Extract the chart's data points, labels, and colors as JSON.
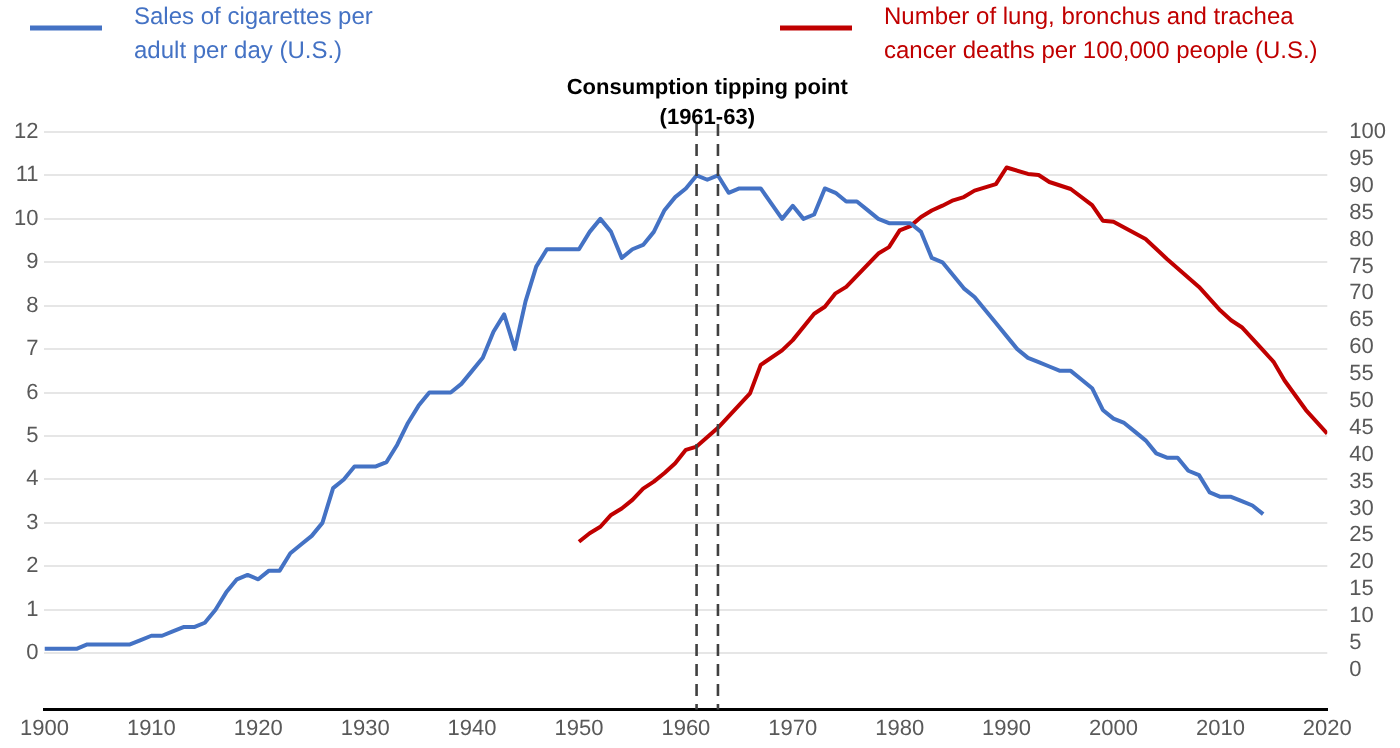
{
  "chart_data": {
    "type": "line",
    "xlim": [
      1900,
      2020
    ],
    "xticks": [
      1900,
      1910,
      1920,
      1930,
      1940,
      1950,
      1960,
      1970,
      1980,
      1990,
      2000,
      2010,
      2020
    ],
    "ylim": [
      -1.3,
      12
    ],
    "yticks": [
      0,
      1,
      2,
      3,
      4,
      5,
      6,
      7,
      8,
      9,
      10,
      11,
      12
    ],
    "y2lim": [
      -7.4,
      100
    ],
    "y2ticks": [
      0,
      5,
      10,
      15,
      20,
      25,
      30,
      35,
      40,
      45,
      50,
      55,
      60,
      65,
      70,
      75,
      80,
      85,
      90,
      95,
      100
    ],
    "grid": "y",
    "legend": "top",
    "marker": "none",
    "line_style": "solid",
    "series": [
      {
        "name": "Sales of cigarettes per adult per day (U.S.)",
        "color": "#4472c4",
        "axis": "y",
        "x": [
          1900,
          1903,
          1904,
          1908,
          1909,
          1910,
          1911,
          1912,
          1913,
          1914,
          1915,
          1916,
          1917,
          1918,
          1919,
          1920,
          1921,
          1922,
          1923,
          1924,
          1925,
          1926,
          1927,
          1928,
          1929,
          1930,
          1931,
          1932,
          1933,
          1934,
          1935,
          1936,
          1937,
          1938,
          1939,
          1940,
          1941,
          1942,
          1943,
          1944,
          1945,
          1946,
          1947,
          1948,
          1949,
          1950,
          1951,
          1952,
          1953,
          1954,
          1955,
          1956,
          1957,
          1958,
          1959,
          1960,
          1961,
          1962,
          1963,
          1964,
          1965,
          1966,
          1967,
          1969,
          1970,
          1971,
          1972,
          1973,
          1974,
          1975,
          1976,
          1977,
          1978,
          1979,
          1980,
          1981,
          1982,
          1983,
          1984,
          1985,
          1986,
          1987,
          1988,
          1989,
          1990,
          1991,
          1992,
          1993,
          1994,
          1995,
          1996,
          1997,
          1998,
          1999,
          2000,
          2001,
          2002,
          2003,
          2004,
          2005,
          2006,
          2007,
          2008,
          2009,
          2010,
          2011,
          2012,
          2013,
          2014
        ],
        "values": [
          0.1,
          0.1,
          0.2,
          0.2,
          0.3,
          0.4,
          0.4,
          0.5,
          0.6,
          0.6,
          0.7,
          1.0,
          1.4,
          1.7,
          1.8,
          1.7,
          1.9,
          1.9,
          2.3,
          2.5,
          2.7,
          3.0,
          3.8,
          4.0,
          4.3,
          4.3,
          4.3,
          4.4,
          4.8,
          5.3,
          5.7,
          6.0,
          6.0,
          6.0,
          6.2,
          6.5,
          6.8,
          7.4,
          7.8,
          7.0,
          8.1,
          8.9,
          9.3,
          9.3,
          9.3,
          9.3,
          9.7,
          10.0,
          9.7,
          9.1,
          9.3,
          9.4,
          9.7,
          10.2,
          10.5,
          10.7,
          11.0,
          10.9,
          11.0,
          10.6,
          10.7,
          10.7,
          10.7,
          10.0,
          10.3,
          10.0,
          10.1,
          10.7,
          10.6,
          10.4,
          10.4,
          10.2,
          10.0,
          9.9,
          9.9,
          9.9,
          9.7,
          9.1,
          9.0,
          8.7,
          8.4,
          8.2,
          7.9,
          7.6,
          7.3,
          7.0,
          6.8,
          6.7,
          6.6,
          6.5,
          6.5,
          6.3,
          6.1,
          5.6,
          5.4,
          5.3,
          5.1,
          4.9,
          4.6,
          4.5,
          4.5,
          4.2,
          4.1,
          3.7,
          3.6,
          3.6,
          3.5,
          3.4,
          3.2
        ]
      },
      {
        "name": "Number of lung, bronchus and trachea cancer deaths per 100,000 people (U.S.)",
        "color": "#c00000",
        "axis": "y2",
        "x": [
          1950,
          1951,
          1952,
          1953,
          1954,
          1955,
          1956,
          1957,
          1958,
          1959,
          1960,
          1961,
          1963,
          1966,
          1967,
          1969,
          1970,
          1972,
          1973,
          1974,
          1975,
          1978,
          1979,
          1980,
          1981,
          1982,
          1983,
          1984,
          1985,
          1986,
          1987,
          1989,
          1990,
          1992,
          1993,
          1994,
          1996,
          1998,
          1999,
          2000,
          2003,
          2005,
          2008,
          2010,
          2011,
          2012,
          2014,
          2015,
          2016,
          2018,
          2020
        ],
        "values": [
          23.8,
          25.4,
          26.6,
          28.8,
          30,
          31.6,
          33.7,
          35,
          36.6,
          38.4,
          40.9,
          41.5,
          45,
          51.4,
          56.7,
          59.4,
          61.3,
          66.2,
          67.5,
          70,
          71.2,
          77.4,
          78.6,
          81.7,
          82.5,
          84.2,
          85.4,
          86.3,
          87.3,
          87.9,
          89.1,
          90.3,
          93.4,
          92.2,
          92,
          90.7,
          89.4,
          86.4,
          83.5,
          83.3,
          80.1,
          76.4,
          71.2,
          66.8,
          65,
          63.7,
          59.4,
          57.2,
          53.8,
          48.3,
          43.9
        ]
      }
    ],
    "ref_lines": [
      {
        "axis": "x",
        "value": 1961,
        "label": null,
        "color": "#404040",
        "line_style": "dashed"
      },
      {
        "axis": "x",
        "value": 1963,
        "label": null,
        "color": "#404040",
        "line_style": "dashed"
      }
    ],
    "annotations": [
      "Consumption tipping point (1961-63)"
    ]
  }
}
